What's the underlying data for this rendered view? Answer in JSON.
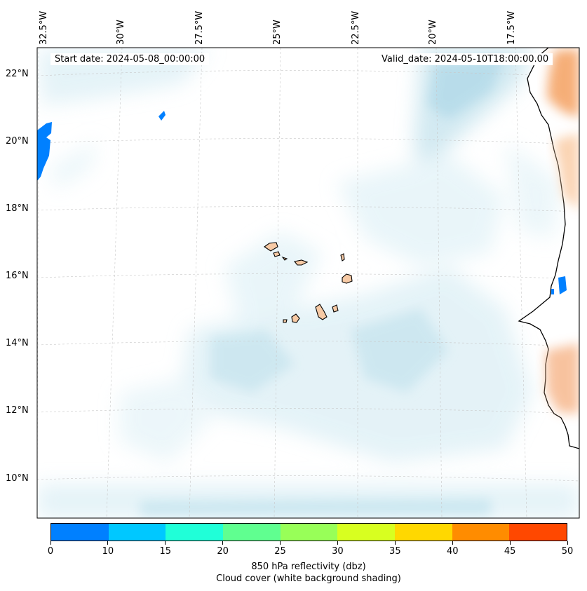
{
  "map": {
    "start_date": "Start date: 2024-05-08_00:00:00",
    "valid_date": "Valid_date: 2024-05-10T18:00:00.00",
    "longitude_labels": [
      "32.5°W",
      "30°W",
      "27.5°W",
      "25°W",
      "22.5°W",
      "20°W",
      "17.5°W"
    ],
    "latitude_labels": [
      "22°N",
      "20°N",
      "18°N",
      "16°N",
      "14°N",
      "12°N",
      "10°N"
    ],
    "colors": {
      "cloud": "#add8e6",
      "land_fill": "#f7caa5",
      "reflectivity_low": "#0080ff",
      "orange_land": "#f4a060",
      "coastline": "#000000"
    }
  },
  "colorbar": {
    "ticks": [
      "0",
      "10",
      "15",
      "20",
      "25",
      "30",
      "35",
      "40",
      "45",
      "50"
    ],
    "colors": [
      "#0080ff",
      "#00c8ff",
      "#20ffd8",
      "#60ff90",
      "#98ff58",
      "#d8ff20",
      "#ffd800",
      "#ff8c00",
      "#ff4800"
    ],
    "label_line1": "850 hPa reflectivity (dbz)",
    "label_line2": "Cloud cover (white background shading)"
  }
}
